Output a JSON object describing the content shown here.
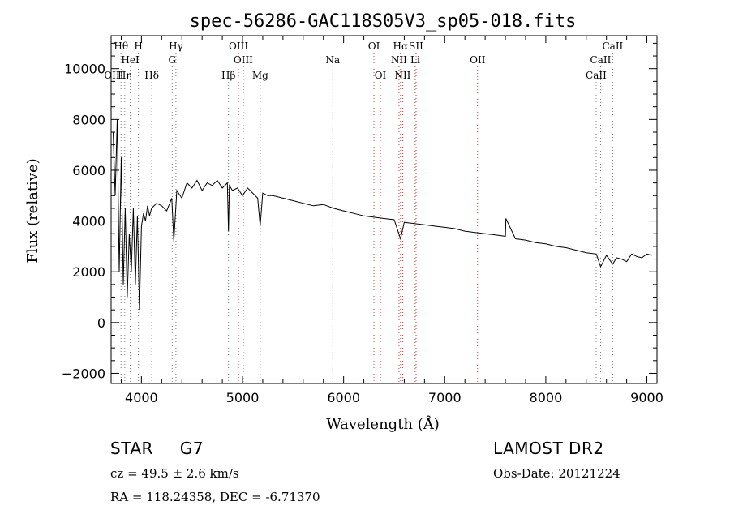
{
  "chart_data": {
    "type": "line",
    "title": "spec-56286-GAC118S05V3_sp05-018.fits",
    "xlabel": "Wavelength (Å)",
    "ylabel": "Flux (relative)",
    "xlim": [
      3700,
      9100
    ],
    "ylim": [
      -2400,
      11300
    ],
    "xticks": [
      4000,
      5000,
      6000,
      7000,
      8000,
      9000
    ],
    "yticks": [
      -2000,
      0,
      2000,
      4000,
      6000,
      8000,
      10000
    ],
    "xtick_labels": [
      "4000",
      "5000",
      "6000",
      "7000",
      "8000",
      "9000"
    ],
    "ytick_labels": [
      "−2000",
      "0",
      "2000",
      "4000",
      "6000",
      "8000",
      "10000"
    ],
    "grid": false,
    "series": [
      {
        "color": "#000000",
        "x": [
          3720,
          3740,
          3760,
          3780,
          3800,
          3820,
          3840,
          3860,
          3880,
          3900,
          3920,
          3940,
          3960,
          3980,
          4000,
          4020,
          4040,
          4060,
          4080,
          4100,
          4150,
          4200,
          4250,
          4300,
          4320,
          4350,
          4400,
          4450,
          4500,
          4550,
          4600,
          4650,
          4700,
          4750,
          4800,
          4850,
          4861,
          4870,
          4900,
          4950,
          5000,
          5050,
          5100,
          5150,
          5175,
          5200,
          5250,
          5300,
          5400,
          5500,
          5600,
          5700,
          5800,
          5900,
          6000,
          6100,
          6200,
          6300,
          6400,
          6500,
          6563,
          6600,
          6700,
          6800,
          6900,
          7000,
          7100,
          7200,
          7300,
          7400,
          7500,
          7600,
          7605,
          7700,
          7800,
          7900,
          8000,
          8100,
          8200,
          8300,
          8400,
          8500,
          8542,
          8600,
          8662,
          8700,
          8750,
          8800,
          8850,
          8900,
          8950,
          9000,
          9050
        ],
        "y": [
          7500,
          5000,
          8000,
          2000,
          6500,
          1500,
          4500,
          1000,
          3500,
          2000,
          4500,
          1500,
          4200,
          500,
          3800,
          4300,
          4000,
          4600,
          4200,
          4500,
          4700,
          4600,
          4400,
          4900,
          3200,
          5200,
          4900,
          5500,
          5300,
          5600,
          5200,
          5500,
          5400,
          5600,
          5300,
          5500,
          3600,
          5400,
          5200,
          5300,
          5000,
          5300,
          5100,
          4900,
          3800,
          5100,
          5000,
          5000,
          4900,
          4800,
          4700,
          4600,
          4650,
          4500,
          4400,
          4300,
          4200,
          4150,
          4100,
          4050,
          3300,
          3950,
          3900,
          3850,
          3800,
          3750,
          3700,
          3600,
          3550,
          3500,
          3450,
          3400,
          4100,
          3300,
          3250,
          3150,
          3100,
          3000,
          2950,
          2850,
          2750,
          2700,
          2200,
          2650,
          2300,
          2550,
          2500,
          2400,
          2700,
          2600,
          2550,
          2700,
          2650
        ]
      }
    ],
    "lines": [
      {
        "name": "Hθ",
        "wl": 3798,
        "row": 0,
        "color": "#7a7a7a"
      },
      {
        "name": "H",
        "wl": 3970,
        "row": 0,
        "color": "#7a7a7a"
      },
      {
        "name": "Hγ",
        "wl": 4341,
        "row": 0,
        "color": "#7a7a7a"
      },
      {
        "name": "OIII",
        "wl": 4960,
        "row": 0,
        "color": "#c04040"
      },
      {
        "name": "OI",
        "wl": 6300,
        "row": 0,
        "color": "#c04040"
      },
      {
        "name": "Hα",
        "wl": 6563,
        "row": 0,
        "color": "#c04040"
      },
      {
        "name": "SII",
        "wl": 6717,
        "row": 0,
        "color": "#c04040"
      },
      {
        "name": "CaII",
        "wl": 8662,
        "row": 0,
        "color": "#7a7a7a"
      },
      {
        "name": "HeI",
        "wl": 3889,
        "row": 1,
        "color": "#7a7a7a"
      },
      {
        "name": "G",
        "wl": 4304,
        "row": 1,
        "color": "#7a7a7a"
      },
      {
        "name": "OIII",
        "wl": 5007,
        "row": 1,
        "color": "#c04040"
      },
      {
        "name": "Na",
        "wl": 5893,
        "row": 1,
        "color": "#7a7a7a"
      },
      {
        "name": "NII",
        "wl": 6548,
        "row": 1,
        "color": "#c04040"
      },
      {
        "name": "Li",
        "wl": 6708,
        "row": 1,
        "color": "#c04040"
      },
      {
        "name": "OII",
        "wl": 7325,
        "row": 1,
        "color": "#c04040"
      },
      {
        "name": "CaII",
        "wl": 8542,
        "row": 1,
        "color": "#7a7a7a"
      },
      {
        "name": "OIII",
        "wl": 3727,
        "row": 2,
        "color": "#c04040"
      },
      {
        "name": "Hη",
        "wl": 3835,
        "row": 2,
        "color": "#7a7a7a"
      },
      {
        "name": "Hδ",
        "wl": 4102,
        "row": 2,
        "color": "#7a7a7a"
      },
      {
        "name": "Hβ",
        "wl": 4861,
        "row": 2,
        "color": "#7a7a7a"
      },
      {
        "name": "Mg",
        "wl": 5175,
        "row": 2,
        "color": "#7a7a7a"
      },
      {
        "name": "OI",
        "wl": 6364,
        "row": 2,
        "color": "#c04040"
      },
      {
        "name": "NII",
        "wl": 6584,
        "row": 2,
        "color": "#c04040"
      },
      {
        "name": "CaII",
        "wl": 8498,
        "row": 2,
        "color": "#7a7a7a"
      }
    ]
  },
  "info": {
    "class": "STAR",
    "subclass": "G7",
    "survey": "LAMOST DR2",
    "redshift": "cz = 49.5 ± 2.6 km/s",
    "obs_date": "Obs-Date: 20121224",
    "coords": "RA = 118.24358, DEC =  -6.71370"
  }
}
